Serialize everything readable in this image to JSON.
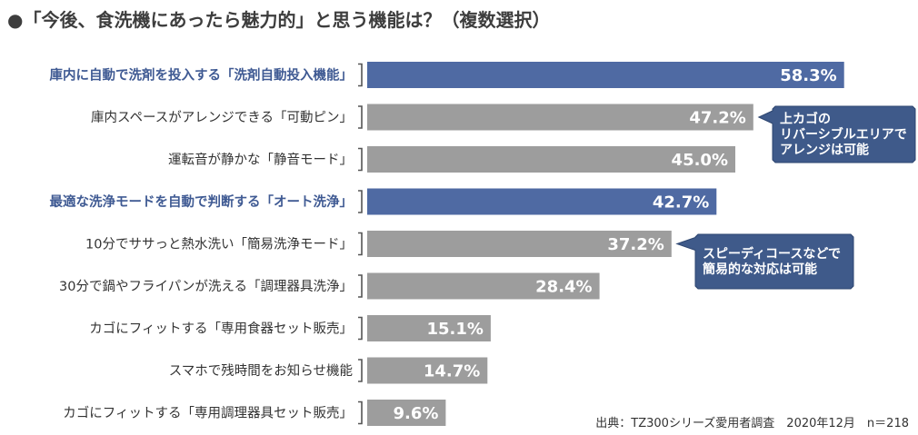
{
  "chart_data": {
    "type": "bar",
    "orientation": "horizontal",
    "title": "●「今後、食洗機にあったら魅力的」と思う機能は？（複数選択）",
    "categories": [
      "庫内に自動で洗剤を投入する「洗剤自動投入機能」",
      "庫内スペースがアレンジできる「可動ピン」",
      "運転音が静かな「静音モード」",
      "最適な洗浄モードを自動で判断する「オート洗浄」",
      "10分でササっと熱水洗い「簡易洗浄モード」",
      "30分で鍋やフライパンが洗える「調理器具洗浄」",
      "カゴにフィットする「専用食器セット販売」",
      "スマホで残時間をお知らせ機能",
      "カゴにフィットする「専用調理器具セット販売」"
    ],
    "values": [
      58.3,
      47.2,
      45.0,
      42.7,
      37.2,
      28.4,
      15.1,
      14.7,
      9.6
    ],
    "value_labels": [
      "58.3%",
      "47.2%",
      "45.0%",
      "42.7%",
      "37.2%",
      "28.4%",
      "15.1%",
      "14.7%",
      "9.6%"
    ],
    "highlighted": [
      true,
      false,
      false,
      true,
      false,
      false,
      false,
      false,
      false
    ],
    "xlim": [
      0,
      70
    ],
    "grid": false,
    "legend": "none",
    "colors": {
      "highlight_bar": "#4f6aa3",
      "normal_bar": "#9d9d9d",
      "highlight_label": "#3f5a93",
      "normal_label": "#333333",
      "callout": "#3f5a8a"
    },
    "annotations": [
      {
        "target_index": 1,
        "lines": [
          "上カゴの",
          "リバーシブルエリアで",
          "アレンジは可能"
        ]
      },
      {
        "target_index": 4,
        "lines": [
          "スピーディコースなどで",
          "簡易的な対応は可能"
        ]
      }
    ]
  },
  "source": "出典：TZ300シリーズ愛用者調査　2020年12月　n＝218"
}
